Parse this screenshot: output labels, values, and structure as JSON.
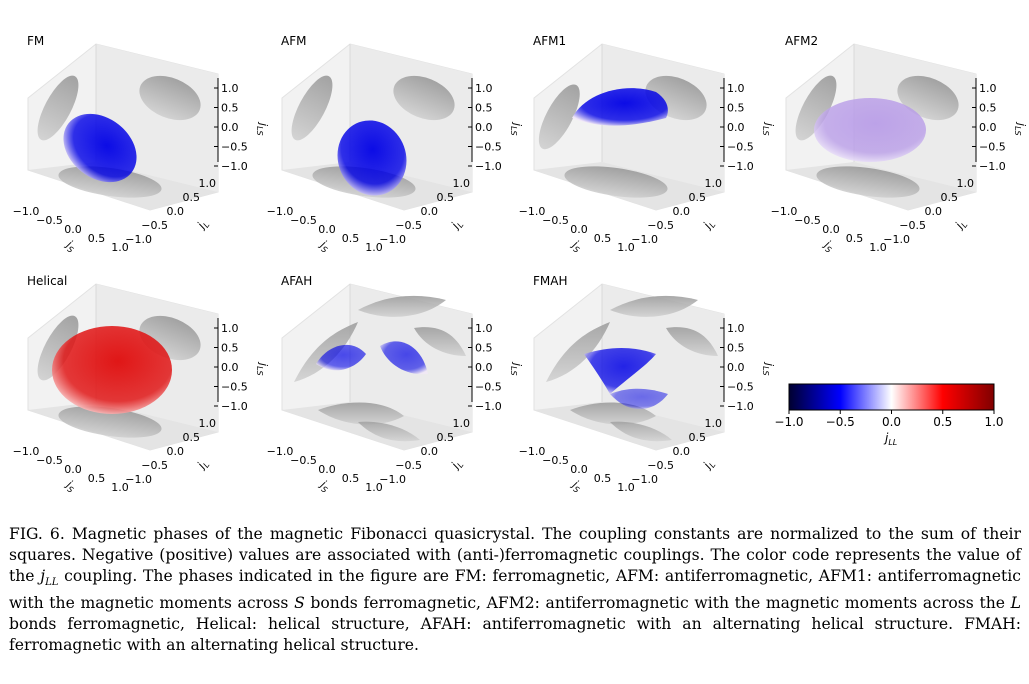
{
  "figure": {
    "panels": [
      {
        "id": "fm",
        "title": "FM",
        "shape": "tilted",
        "color": "#0a1ce0",
        "tint": "blue"
      },
      {
        "id": "afm",
        "title": "AFM",
        "shape": "round",
        "color": "#2a22d8",
        "tint": "blue"
      },
      {
        "id": "afm1",
        "title": "AFM1",
        "shape": "cap",
        "color": "#0b18e0",
        "tint": "blue"
      },
      {
        "id": "afm2",
        "title": "AFM2",
        "shape": "ellipse",
        "color": "#cdb6f0",
        "tint": "lavender"
      },
      {
        "id": "helical",
        "title": "Helical",
        "shape": "ellipse",
        "color": "#e41c1c",
        "tint": "red"
      },
      {
        "id": "afah",
        "title": "AFAH",
        "shape": "butterfly",
        "color": "#3c4cf0",
        "tint": "blue"
      },
      {
        "id": "fmah",
        "title": "FMAH",
        "shape": "twist",
        "color": "#2434e4",
        "tint": "blue"
      }
    ],
    "axes": {
      "z_label": "j",
      "z_sub": "LS",
      "y_label": "j",
      "y_sub": "L",
      "x_label": "j",
      "x_sub": "S",
      "z_ticks": [
        "1.0",
        "0.5",
        "0.0",
        "−0.5",
        "−1.0"
      ],
      "y_ticks": [
        "1.0",
        "0.5",
        "0.0",
        "−0.5",
        "−1.0"
      ],
      "x_ticks": [
        "−1.0",
        "−0.5",
        "0.0",
        "0.5",
        "1.0"
      ]
    },
    "colorbar": {
      "ticks": [
        "−1.0",
        "−0.5",
        "0.0",
        "0.5",
        "1.0"
      ],
      "label": "j",
      "label_sub": "LL",
      "colors": [
        "#000030",
        "#0000ff",
        "#ffffff",
        "#ff0000",
        "#800000"
      ]
    }
  },
  "caption": {
    "p1": "FIG. 6. Magnetic phases of the magnetic Fibonacci quasicrystal. The coupling constants are normalized to the sum of their squares. Negative (positive) values are associated with (anti-)ferromagnetic couplings. The color code represents the value of the ",
    "jll_j": "j",
    "jll_sub": "LL",
    "p2": " coupling. The phases indicated in the figure are FM: ferromagnetic, AFM: antiferromagnetic, AFM1: antiferromagnetic with the magnetic moments across ",
    "s": "S",
    "p3": " bonds ferromagnetic, AFM2: antiferromagnetic with the magnetic moments across the ",
    "l": "L",
    "p4": " bonds ferromagnetic, Helical: helical structure, AFAH: antiferromagnetic with an alternating helical structure. FMAH: ferromagnetic with an alternating helical structure."
  }
}
